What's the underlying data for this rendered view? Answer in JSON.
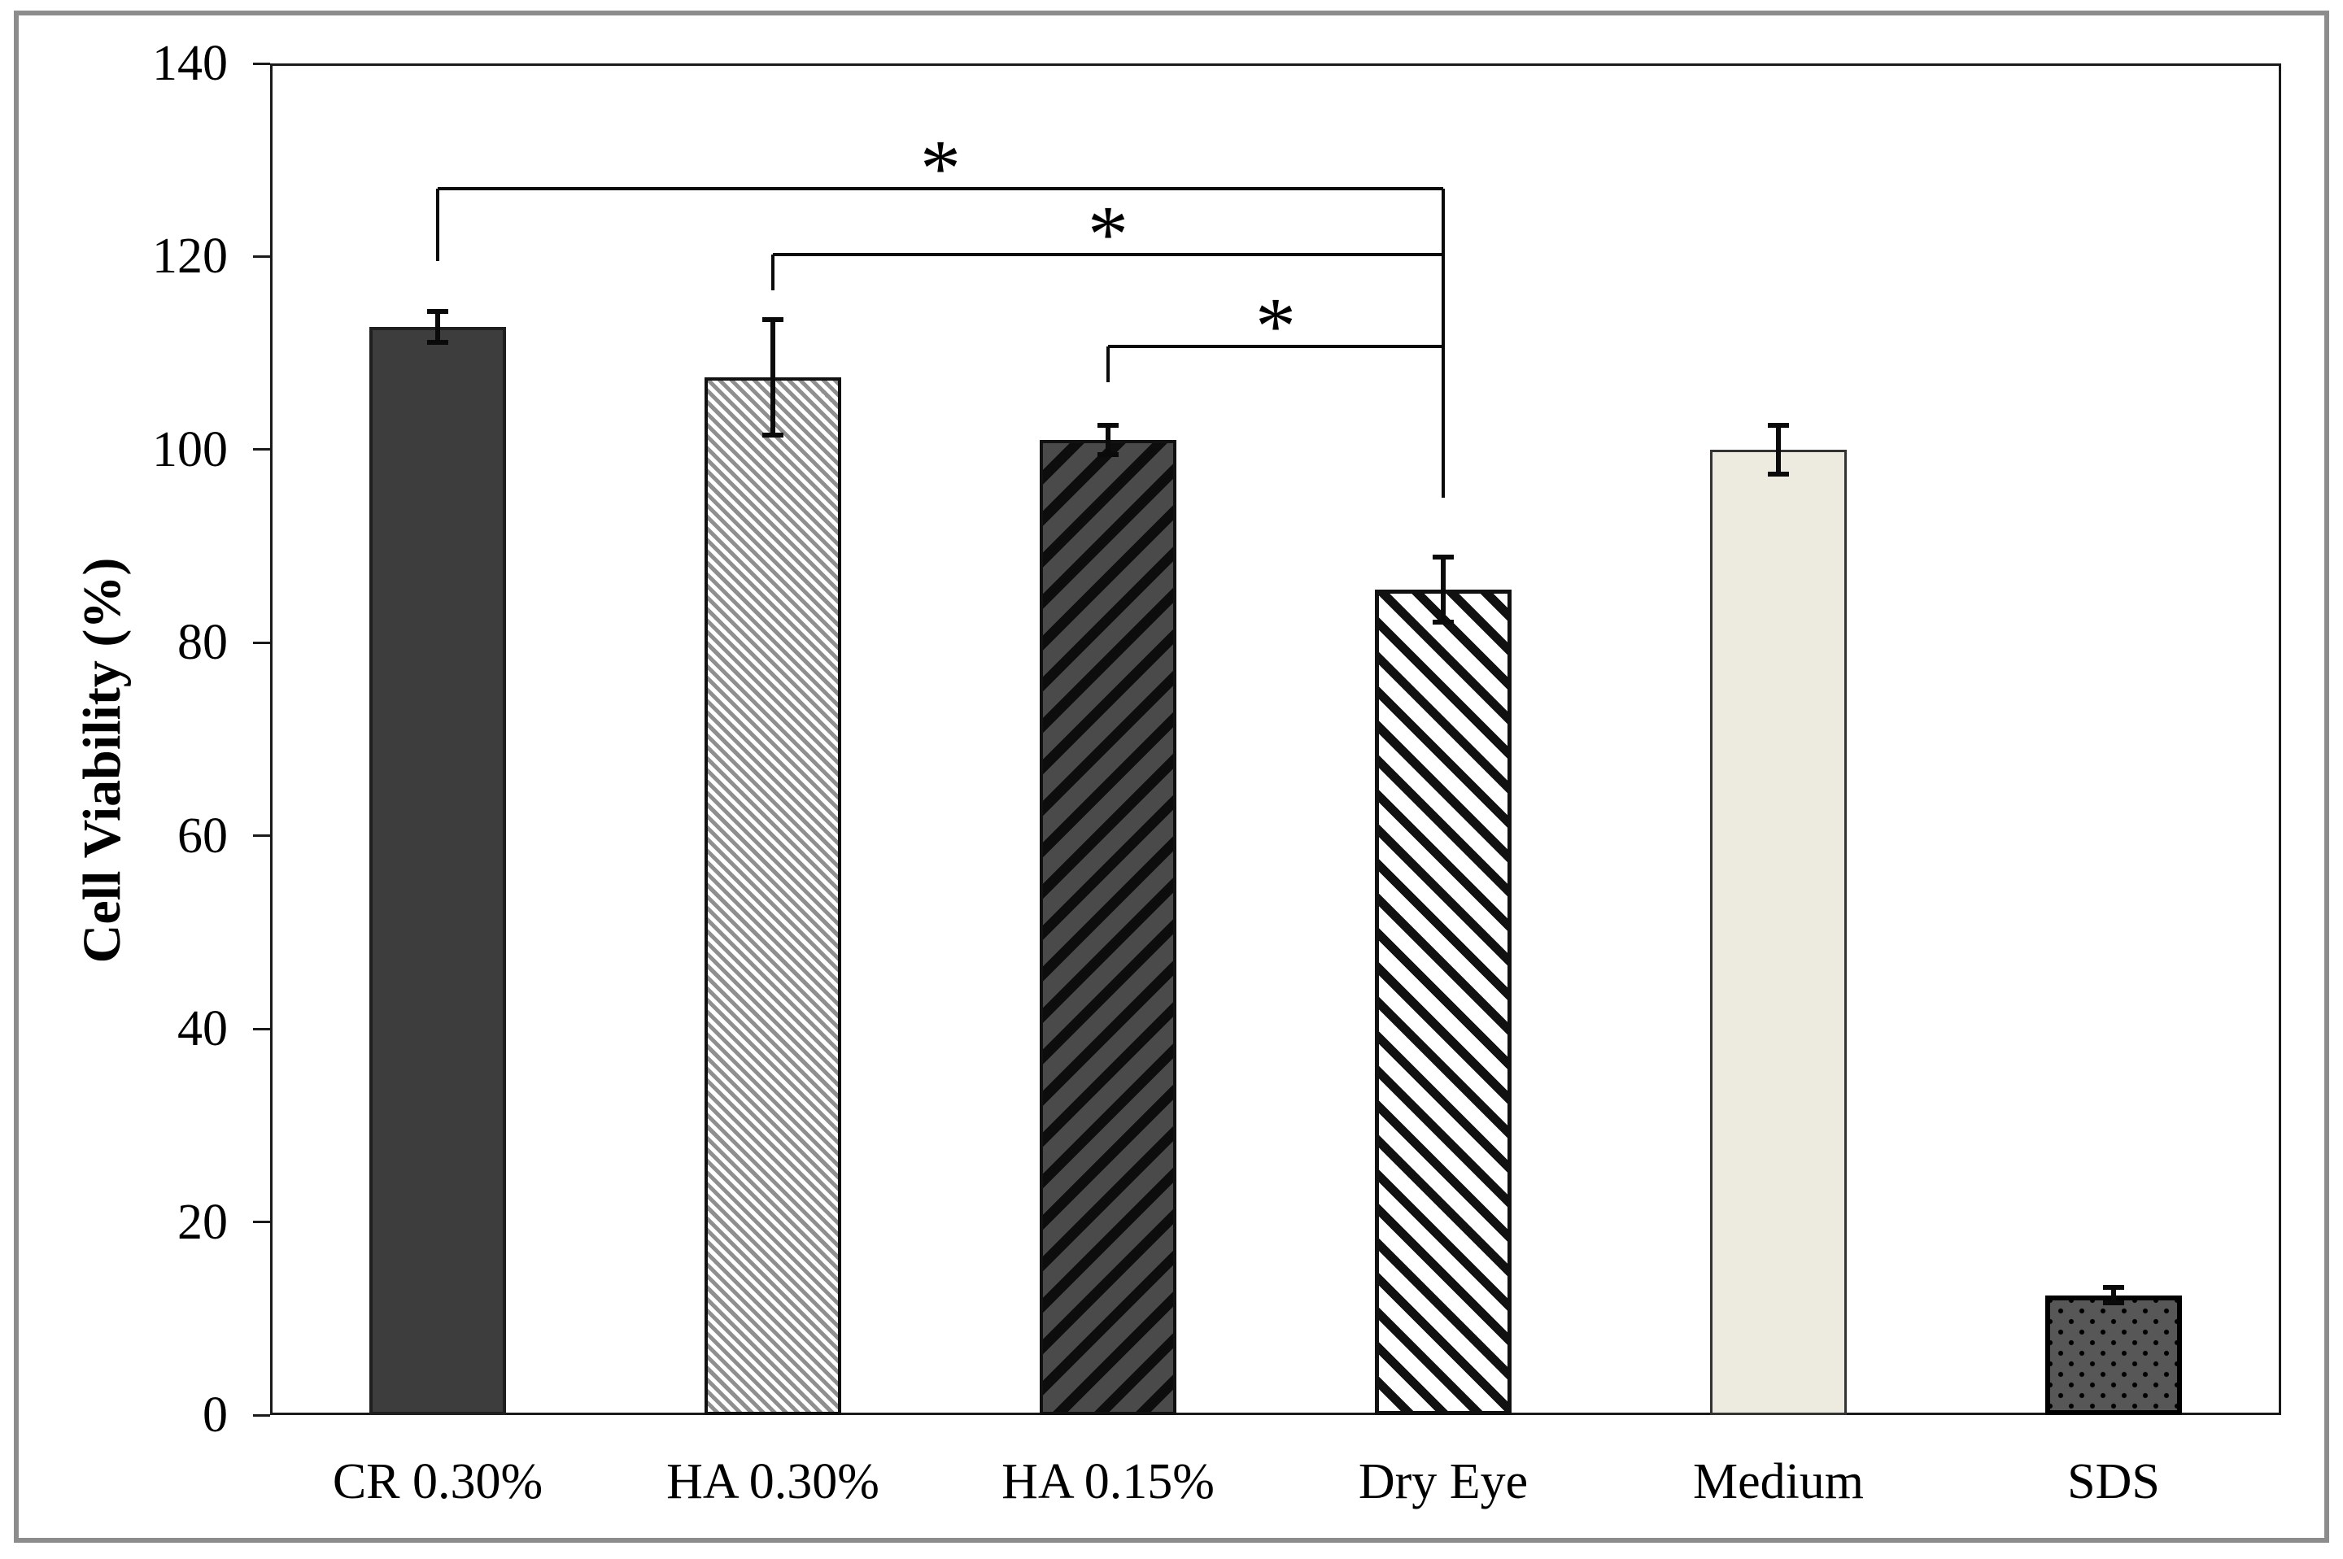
{
  "figure": {
    "background_color": "#ffffff",
    "outer_border_color": "#8c8c8c",
    "axis_line_color": "#1a1a1a",
    "text_color": "#000000"
  },
  "chart_data": {
    "type": "bar",
    "title": "",
    "xlabel": "",
    "ylabel": "Cell Viability (%)",
    "ylim": [
      0,
      140
    ],
    "yticks": [
      0,
      20,
      40,
      60,
      80,
      100,
      120,
      140
    ],
    "grid": false,
    "legend": false,
    "categories": [
      "CR 0.30%",
      "HA 0.30%",
      "HA 0.15%",
      "Dry Eye",
      "Medium",
      "SDS"
    ],
    "series": [
      {
        "name": "Cell Viability (%)",
        "values": [
          112.7,
          107.5,
          101.0,
          85.5,
          100.0,
          12.4
        ],
        "errors": [
          1.6,
          6.0,
          1.5,
          3.4,
          2.5,
          0.8
        ]
      }
    ],
    "bar_styles": [
      {
        "category": "CR 0.30%",
        "pattern": "solid",
        "fill": "#3d3d3d",
        "stripe": "",
        "border": "#1f1f1f",
        "border_width": 4
      },
      {
        "category": "HA 0.30%",
        "pattern": "hatch-backslash-thin",
        "fill": "#ffffff",
        "stripe": "#8f8f8f",
        "border": "#111111",
        "border_width": 4
      },
      {
        "category": "HA 0.15%",
        "pattern": "hatch-slash-bold",
        "fill": "#4a4a4a",
        "stripe": "#0d0d0d",
        "border": "#111111",
        "border_width": 4
      },
      {
        "category": "Dry Eye",
        "pattern": "hatch-backslash-bold",
        "fill": "#ffffff",
        "stripe": "#111111",
        "border": "#111111",
        "border_width": 5
      },
      {
        "category": "Medium",
        "pattern": "solid",
        "fill": "#edebdf",
        "stripe": "",
        "border": "#333333",
        "border_width": 3
      },
      {
        "category": "SDS",
        "pattern": "dots",
        "fill": "#575757",
        "stripe": "#000000",
        "border": "#000000",
        "border_width": 6
      }
    ],
    "significance_brackets": [
      {
        "from": "CR 0.30%",
        "to": "Dry Eye",
        "label": "*",
        "level": 127.0,
        "from_drop_to": 119.5,
        "to_drop_to": 95.0
      },
      {
        "from": "HA 0.30%",
        "to": "Dry Eye",
        "label": "*",
        "level": 120.2,
        "from_drop_to": 116.5,
        "to_drop_to": null
      },
      {
        "from": "HA 0.15%",
        "to": "Dry Eye",
        "label": "*",
        "level": 110.7,
        "from_drop_to": 107.0,
        "to_drop_to": null
      }
    ]
  }
}
